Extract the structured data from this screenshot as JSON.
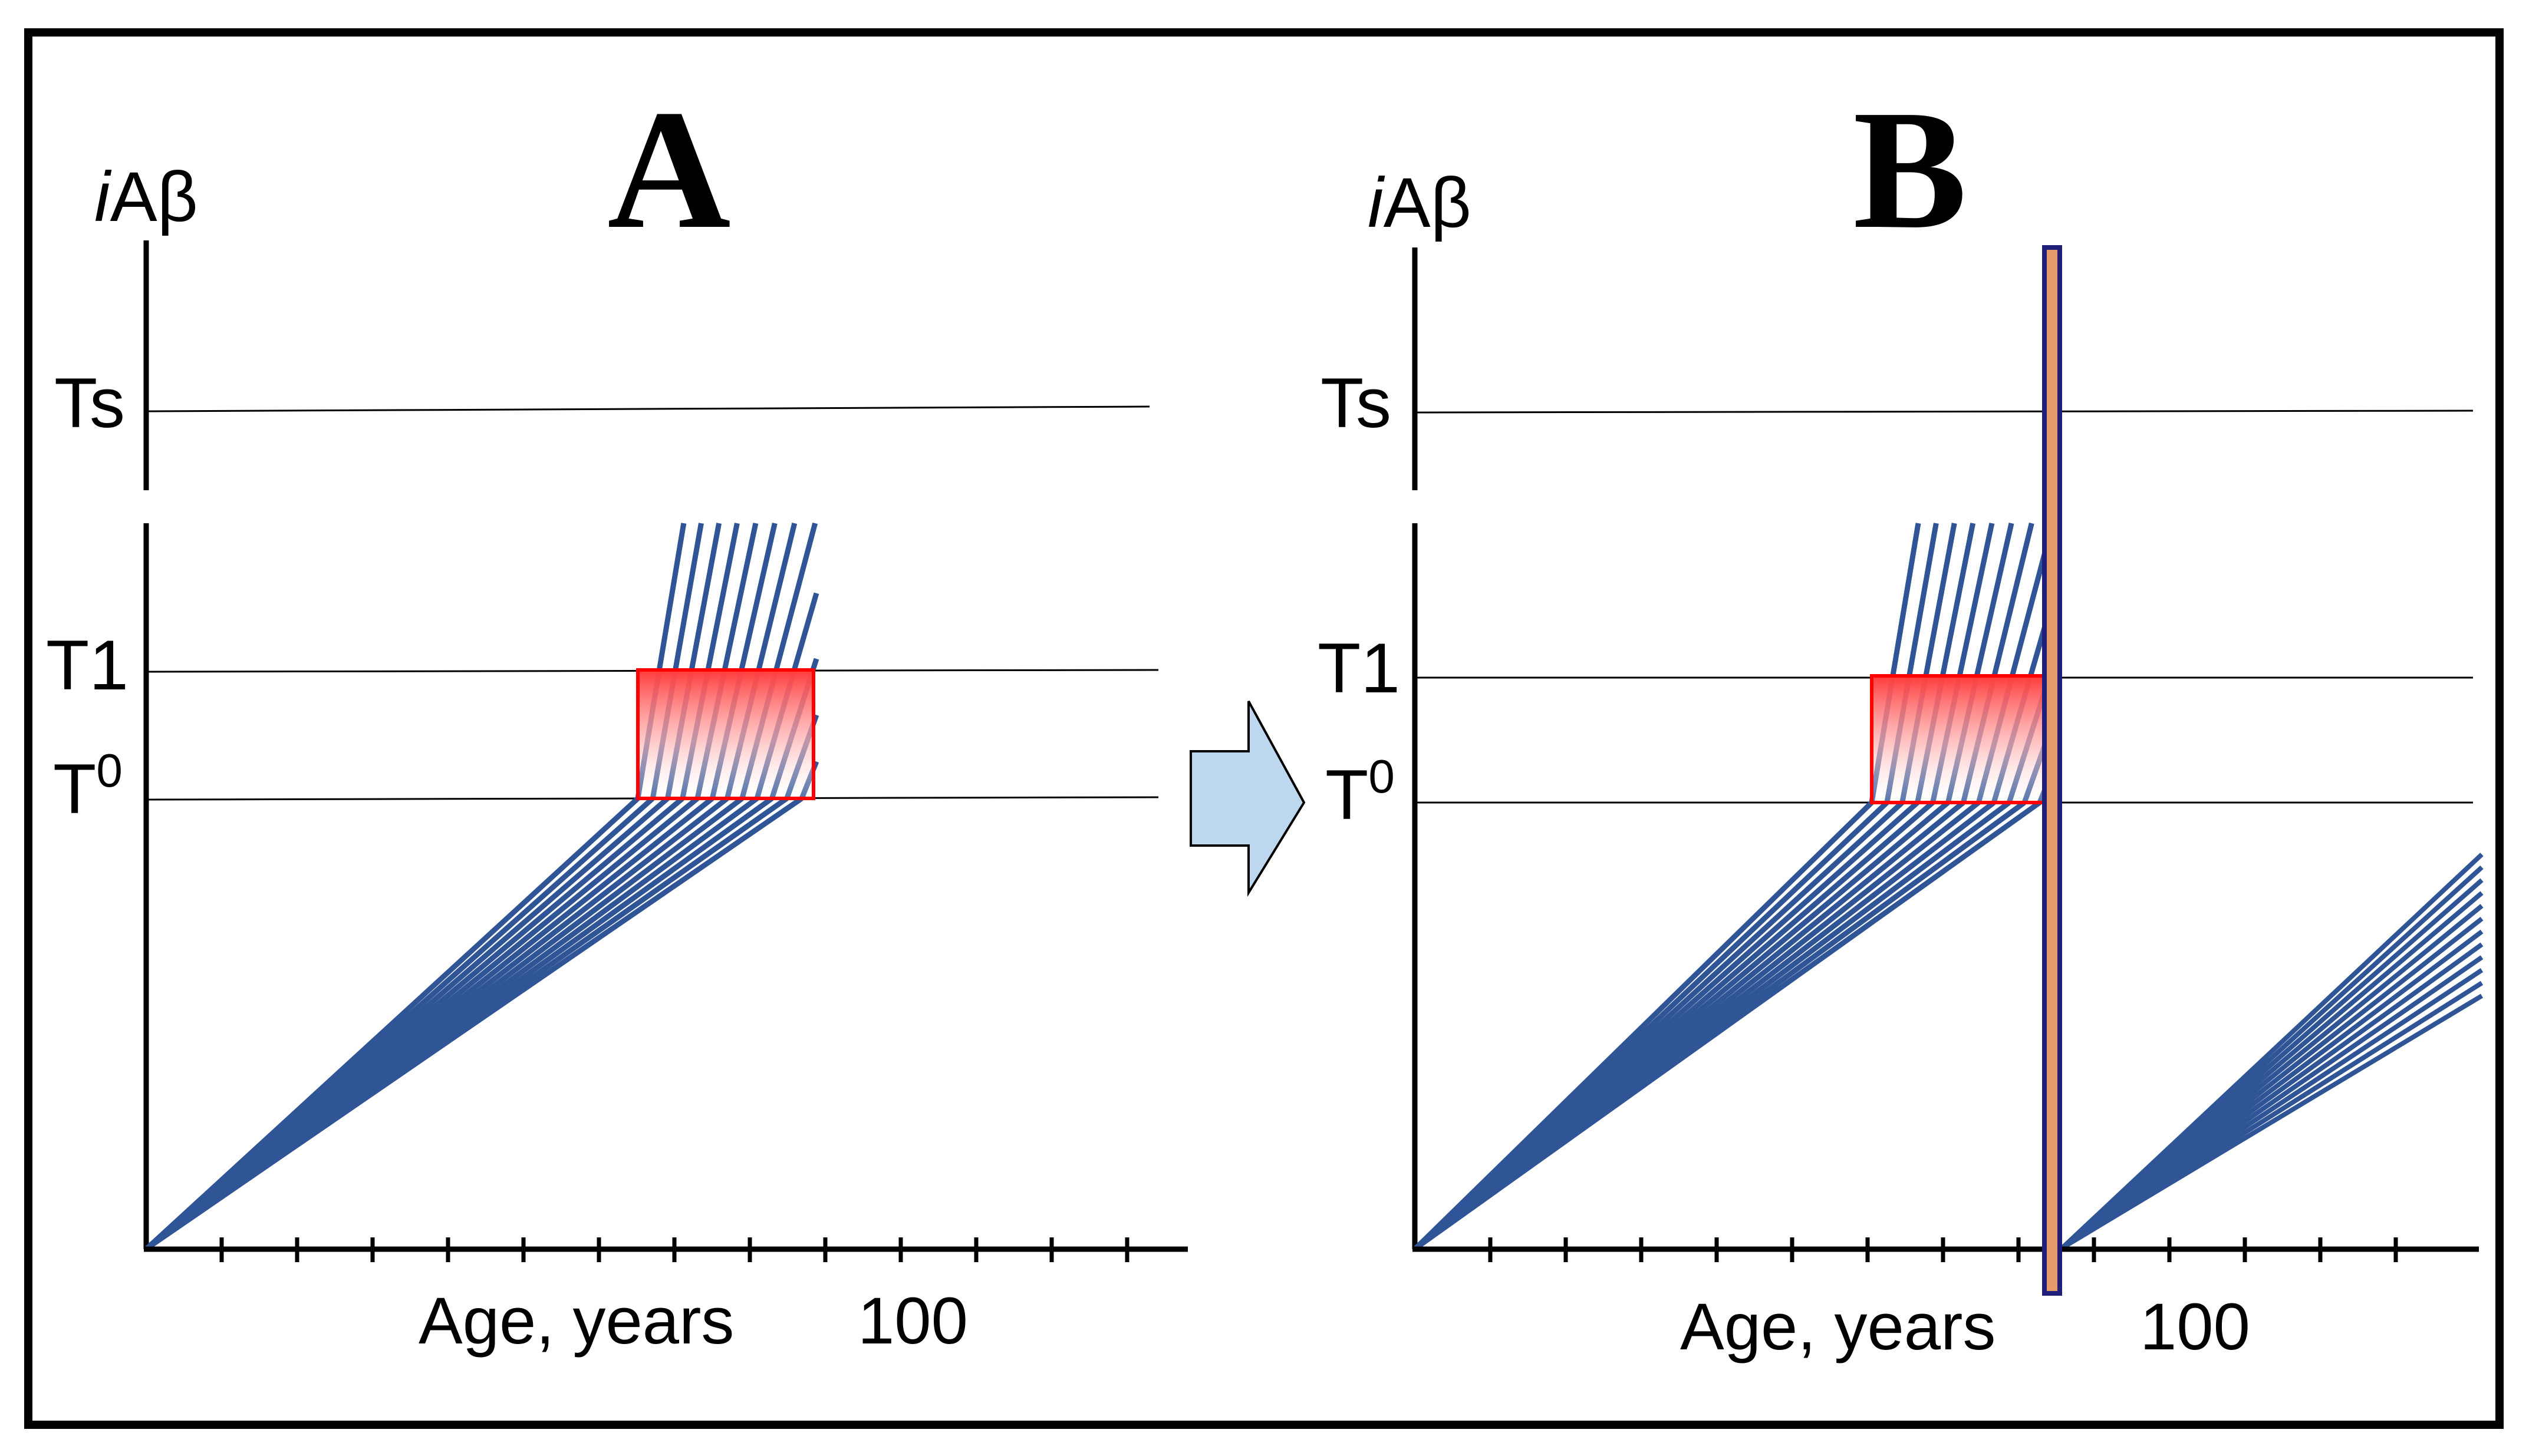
{
  "figure": {
    "panels": [
      {
        "letter": "A",
        "y_axis_label": {
          "italic": "i",
          "rest": "Aβ"
        },
        "threshold_labels": {
          "ts": "Ts",
          "t1": "T1",
          "t0_base": "T",
          "t0_sup": "0"
        },
        "x_axis_label": "Age, years",
        "x_tick_label": "100"
      },
      {
        "letter": "B",
        "y_axis_label": {
          "italic": "i",
          "rest": "Aβ"
        },
        "threshold_labels": {
          "ts": "Ts",
          "t1": "T1",
          "t0_base": "T",
          "t0_sup": "0"
        },
        "x_axis_label": "Age, years",
        "x_tick_label": "100"
      }
    ],
    "colors": {
      "trajectory": "#2f5597",
      "window_edge": "#ff0000",
      "window_fill_top": "#ff3b3b",
      "arrow_fill": "#bdd7ee",
      "intervention_fill": "#e59a6a",
      "intervention_edge": "#1f1f7a",
      "axis": "#000000",
      "threshold_line": "#000000"
    }
  }
}
